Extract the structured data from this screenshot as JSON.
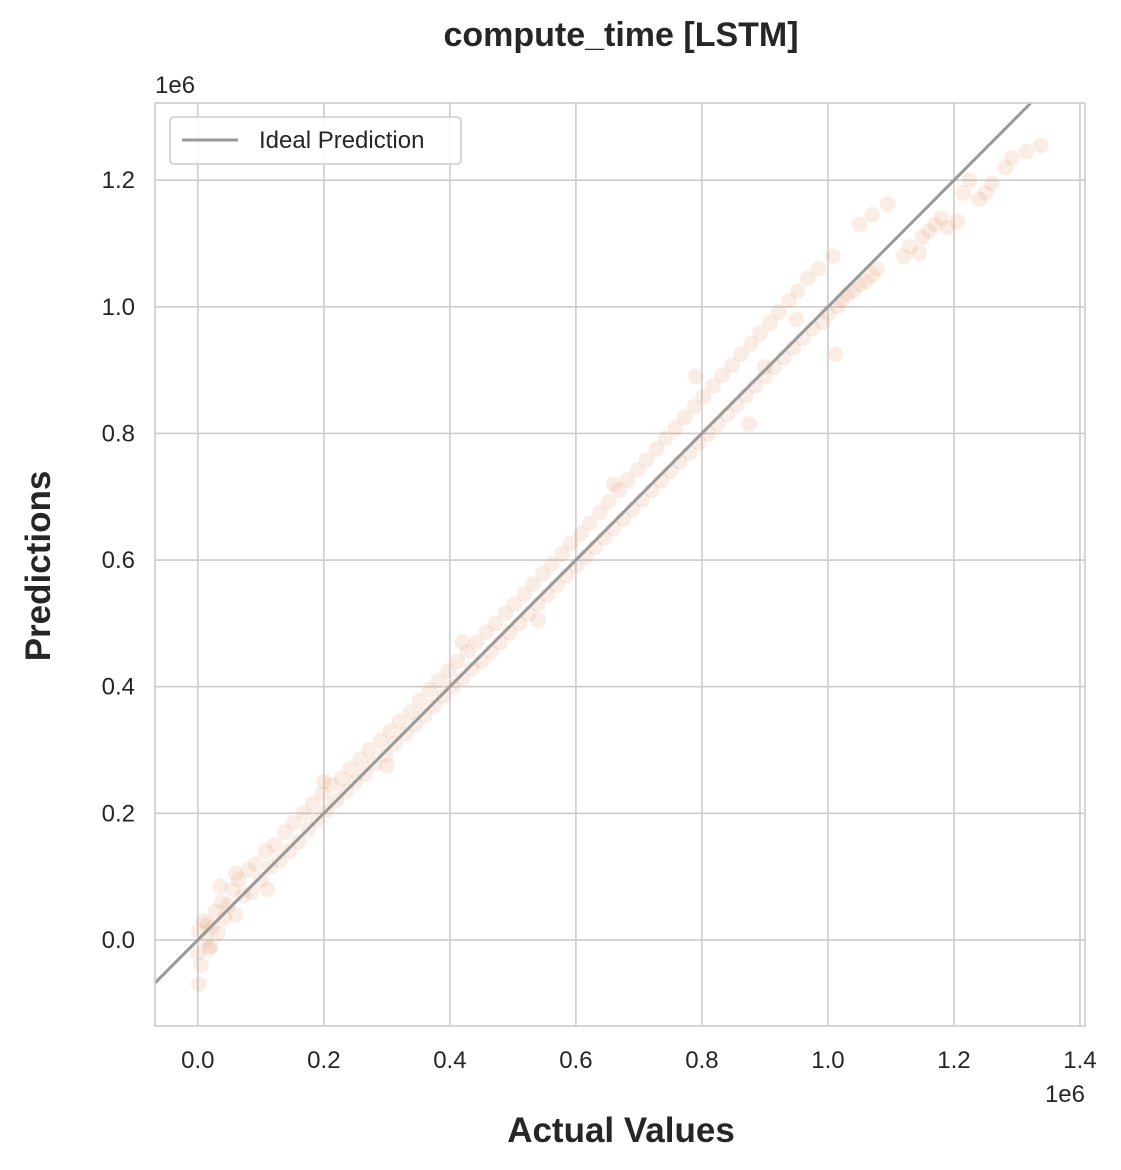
{
  "chart_data": {
    "type": "scatter",
    "title": "compute_time [LSTM]",
    "xlabel": "Actual Values",
    "ylabel": "Predictions",
    "x_offset_text": "1e6",
    "y_offset_text": "1e6",
    "xlim": [
      -68000,
      1408000
    ],
    "ylim": [
      -136000,
      1322000
    ],
    "xticks": [
      0,
      200000,
      400000,
      600000,
      800000,
      1000000,
      1200000,
      1400000
    ],
    "xtick_labels": [
      "0.0",
      "0.2",
      "0.4",
      "0.6",
      "0.8",
      "1.0",
      "1.2",
      "1.4"
    ],
    "yticks": [
      0,
      200000,
      400000,
      600000,
      800000,
      1000000,
      1200000
    ],
    "ytick_labels": [
      "0.0",
      "0.2",
      "0.4",
      "0.6",
      "0.8",
      "1.0",
      "1.2"
    ],
    "grid": true,
    "legend": {
      "position": "top-left",
      "entries": [
        "Ideal Prediction"
      ]
    },
    "reference_line": {
      "name": "Ideal Prediction",
      "slope": 1,
      "intercept": 0,
      "color": "#999999"
    },
    "point_color": "#dd8452",
    "point_alpha": 0.15,
    "series": [
      {
        "values": [
          [
            0,
            -20000
          ],
          [
            2000,
            15000
          ],
          [
            5000,
            -40000
          ],
          [
            8000,
            30000
          ],
          [
            12000,
            0
          ],
          [
            15000,
            25000
          ],
          [
            18000,
            -15000
          ],
          [
            22000,
            20000
          ],
          [
            28000,
            45000
          ],
          [
            32000,
            10000
          ],
          [
            38000,
            60000
          ],
          [
            42000,
            35000
          ],
          [
            48000,
            55000
          ],
          [
            55000,
            80000
          ],
          [
            60000,
            40000
          ],
          [
            65000,
            95000
          ],
          [
            72000,
            70000
          ],
          [
            80000,
            110000
          ],
          [
            85000,
            75000
          ],
          [
            92000,
            120000
          ],
          [
            100000,
            95000
          ],
          [
            108000,
            140000
          ],
          [
            115000,
            115000
          ],
          [
            122000,
            150000
          ],
          [
            130000,
            125000
          ],
          [
            138000,
            170000
          ],
          [
            145000,
            140000
          ],
          [
            152000,
            185000
          ],
          [
            160000,
            155000
          ],
          [
            168000,
            200000
          ],
          [
            175000,
            175000
          ],
          [
            182000,
            215000
          ],
          [
            190000,
            190000
          ],
          [
            198000,
            230000
          ],
          [
            205000,
            205000
          ],
          [
            212000,
            245000
          ],
          [
            220000,
            220000
          ],
          [
            228000,
            255000
          ],
          [
            235000,
            235000
          ],
          [
            242000,
            270000
          ],
          [
            250000,
            250000
          ],
          [
            258000,
            285000
          ],
          [
            265000,
            262000
          ],
          [
            272000,
            300000
          ],
          [
            280000,
            278000
          ],
          [
            290000,
            315000
          ],
          [
            298000,
            292000
          ],
          [
            305000,
            330000
          ],
          [
            312000,
            310000
          ],
          [
            320000,
            345000
          ],
          [
            330000,
            325000
          ],
          [
            338000,
            360000
          ],
          [
            345000,
            340000
          ],
          [
            352000,
            378000
          ],
          [
            360000,
            355000
          ],
          [
            368000,
            395000
          ],
          [
            375000,
            370000
          ],
          [
            382000,
            410000
          ],
          [
            390000,
            385000
          ],
          [
            398000,
            425000
          ],
          [
            405000,
            400000
          ],
          [
            412000,
            440000
          ],
          [
            420000,
            412000
          ],
          [
            428000,
            455000
          ],
          [
            435000,
            428000
          ],
          [
            442000,
            470000
          ],
          [
            450000,
            440000
          ],
          [
            458000,
            486000
          ],
          [
            465000,
            455000
          ],
          [
            472000,
            500000
          ],
          [
            480000,
            470000
          ],
          [
            488000,
            516000
          ],
          [
            495000,
            485000
          ],
          [
            502000,
            530000
          ],
          [
            510000,
            500000
          ],
          [
            518000,
            546000
          ],
          [
            525000,
            515000
          ],
          [
            532000,
            562000
          ],
          [
            540000,
            530000
          ],
          [
            548000,
            578000
          ],
          [
            555000,
            545000
          ],
          [
            562000,
            594000
          ],
          [
            570000,
            560000
          ],
          [
            578000,
            610000
          ],
          [
            585000,
            575000
          ],
          [
            592000,
            626000
          ],
          [
            600000,
            590000
          ],
          [
            608000,
            642000
          ],
          [
            615000,
            605000
          ],
          [
            622000,
            658000
          ],
          [
            630000,
            620000
          ],
          [
            638000,
            675000
          ],
          [
            645000,
            635000
          ],
          [
            652000,
            692000
          ],
          [
            660000,
            650000
          ],
          [
            668000,
            710000
          ],
          [
            675000,
            665000
          ],
          [
            682000,
            726000
          ],
          [
            690000,
            680000
          ],
          [
            698000,
            742000
          ],
          [
            705000,
            695000
          ],
          [
            712000,
            758000
          ],
          [
            720000,
            710000
          ],
          [
            728000,
            775000
          ],
          [
            735000,
            725000
          ],
          [
            742000,
            792000
          ],
          [
            750000,
            740000
          ],
          [
            758000,
            808000
          ],
          [
            765000,
            755000
          ],
          [
            772000,
            825000
          ],
          [
            780000,
            770000
          ],
          [
            788000,
            842000
          ],
          [
            795000,
            785000
          ],
          [
            802000,
            858000
          ],
          [
            810000,
            800000
          ],
          [
            818000,
            875000
          ],
          [
            825000,
            815000
          ],
          [
            832000,
            892000
          ],
          [
            840000,
            830000
          ],
          [
            848000,
            908000
          ],
          [
            855000,
            845000
          ],
          [
            862000,
            925000
          ],
          [
            870000,
            860000
          ],
          [
            878000,
            942000
          ],
          [
            885000,
            875000
          ],
          [
            892000,
            958000
          ],
          [
            900000,
            890000
          ],
          [
            908000,
            975000
          ],
          [
            915000,
            905000
          ],
          [
            922000,
            992000
          ],
          [
            930000,
            920000
          ],
          [
            938000,
            1010000
          ],
          [
            945000,
            935000
          ],
          [
            952000,
            1025000
          ],
          [
            960000,
            950000
          ],
          [
            968000,
            1045000
          ],
          [
            975000,
            965000
          ],
          [
            985000,
            1060000
          ],
          [
            992000,
            975000
          ],
          [
            1000000,
            990000
          ],
          [
            1008000,
            1080000
          ],
          [
            1015000,
            1000000
          ],
          [
            1022000,
            1010000
          ],
          [
            1030000,
            1020000
          ],
          [
            1040000,
            1025000
          ],
          [
            1050000,
            1035000
          ],
          [
            1060000,
            1040000
          ],
          [
            1070000,
            1050000
          ],
          [
            1078000,
            1060000
          ],
          [
            1012000,
            925000
          ],
          [
            1050000,
            1130000
          ],
          [
            1070000,
            1145000
          ],
          [
            1095000,
            1162000
          ],
          [
            1120000,
            1080000
          ],
          [
            1130000,
            1095000
          ],
          [
            1145000,
            1085000
          ],
          [
            1150000,
            1110000
          ],
          [
            1160000,
            1120000
          ],
          [
            1170000,
            1130000
          ],
          [
            1180000,
            1140000
          ],
          [
            1190000,
            1125000
          ],
          [
            1205000,
            1135000
          ],
          [
            1215000,
            1180000
          ],
          [
            1225000,
            1200000
          ],
          [
            1240000,
            1170000
          ],
          [
            1250000,
            1180000
          ],
          [
            1260000,
            1195000
          ],
          [
            1282000,
            1220000
          ],
          [
            1292000,
            1235000
          ],
          [
            1315000,
            1245000
          ],
          [
            1338000,
            1255000
          ],
          [
            2000,
            -70000
          ],
          [
            20000,
            -10000
          ],
          [
            35000,
            85000
          ],
          [
            60000,
            105000
          ],
          [
            110000,
            80000
          ],
          [
            200000,
            250000
          ],
          [
            300000,
            275000
          ],
          [
            420000,
            470000
          ],
          [
            540000,
            505000
          ],
          [
            660000,
            720000
          ],
          [
            790000,
            890000
          ],
          [
            900000,
            905000
          ],
          [
            950000,
            980000
          ],
          [
            875000,
            815000
          ]
        ]
      }
    ]
  }
}
